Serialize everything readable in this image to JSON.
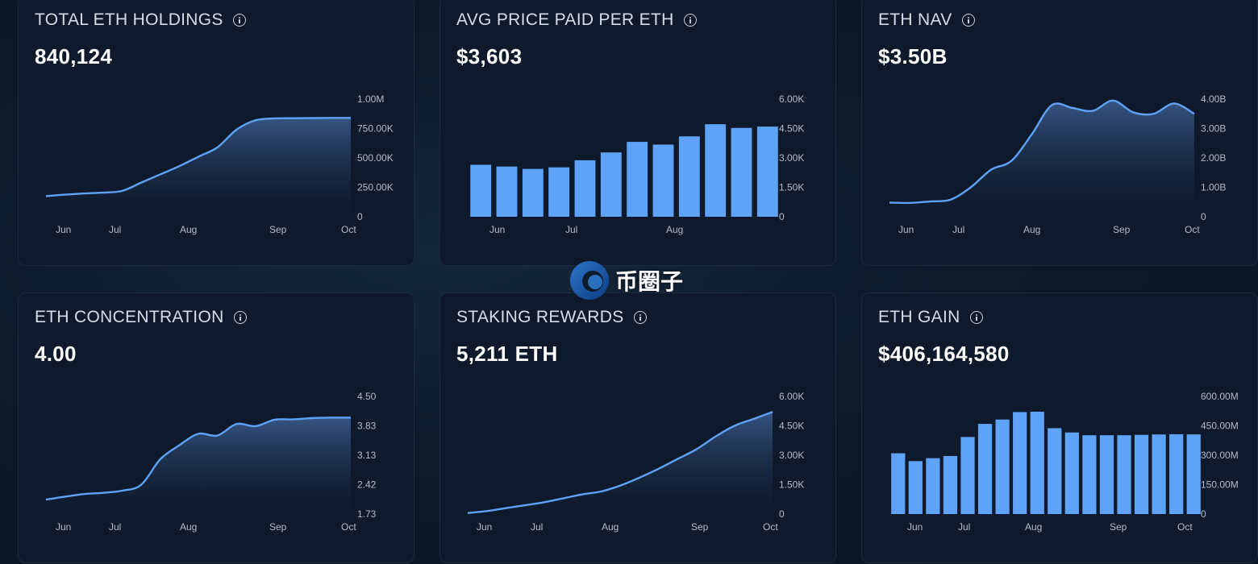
{
  "cards": [
    {
      "title": "TOTAL ETH HOLDINGS",
      "value": "840,124",
      "chart_type": "area",
      "y_ticks": [
        "0",
        "250.00K",
        "500.00K",
        "750.00K",
        "1.00M"
      ],
      "y_max": 1000000,
      "x_labels": [
        "Jun",
        "Jul",
        "Aug",
        "Sep",
        "Oct"
      ],
      "series": [
        175000,
        188000,
        198000,
        205000,
        220000,
        290000,
        360000,
        430000,
        510000,
        590000,
        740000,
        820000,
        836000,
        838000,
        839000,
        840000,
        840124
      ]
    },
    {
      "title": "AVG PRICE PAID PER ETH",
      "value": "$3,603",
      "chart_type": "bar",
      "y_ticks": [
        "0",
        "1.50K",
        "3.00K",
        "4.50K",
        "6.00K"
      ],
      "y_max": 6000,
      "x_labels": [
        "Jun",
        "Jul",
        "Aug"
      ],
      "series": [
        2650,
        2560,
        2440,
        2520,
        2880,
        3280,
        3820,
        3680,
        4100,
        4720,
        4530,
        4600
      ]
    },
    {
      "title": "ETH NAV",
      "value": "$3.50B",
      "chart_type": "area",
      "y_ticks": [
        "0",
        "1.00B",
        "2.00B",
        "3.00B",
        "4.00B"
      ],
      "y_max": 4000000000,
      "x_labels": [
        "Jun",
        "Jul",
        "Aug",
        "Sep",
        "Oct"
      ],
      "series": [
        480000000,
        470000000,
        520000000,
        580000000,
        1000000000,
        1600000000,
        1900000000,
        2800000000,
        3800000000,
        3700000000,
        3600000000,
        3950000000,
        3550000000,
        3500000000,
        3850000000,
        3500000000
      ]
    },
    {
      "title": "ETH CONCENTRATION",
      "value": "4.00",
      "chart_type": "area",
      "y_ticks": [
        "1.73",
        "2.42",
        "3.13",
        "3.83",
        "4.50"
      ],
      "y_min": 1.73,
      "y_max": 4.5,
      "x_labels": [
        "Jun",
        "Jul",
        "Aug",
        "Sep",
        "Oct"
      ],
      "series": [
        2.07,
        2.14,
        2.2,
        2.23,
        2.28,
        2.42,
        3.02,
        3.35,
        3.62,
        3.58,
        3.85,
        3.8,
        3.95,
        3.96,
        3.99,
        4.0,
        4.0
      ]
    },
    {
      "title": "STAKING REWARDS",
      "value": "5,211 ETH",
      "chart_type": "area",
      "y_ticks": [
        "0",
        "1.50K",
        "3.00K",
        "4.50K",
        "6.00K"
      ],
      "y_max": 6000,
      "x_labels": [
        "Jun",
        "Jul",
        "Aug",
        "Sep",
        "Oct"
      ],
      "series": [
        50,
        150,
        300,
        450,
        600,
        800,
        1000,
        1150,
        1450,
        1850,
        2300,
        2800,
        3300,
        3950,
        4500,
        4850,
        5211
      ]
    },
    {
      "title": "ETH GAIN",
      "value": "$406,164,580",
      "chart_type": "bar",
      "y_ticks": [
        "0",
        "150.00M",
        "300.00M",
        "450.00M",
        "600.00M"
      ],
      "y_max": 600000000,
      "x_labels": [
        "Jun",
        "Jul",
        "Aug",
        "Sep",
        "Oct"
      ],
      "series": [
        310000000,
        270000000,
        285000000,
        296000000,
        393000000,
        460000000,
        482000000,
        520000000,
        522000000,
        438000000,
        416000000,
        402000000,
        402000000,
        402000000,
        404000000,
        406000000,
        407000000,
        406164580
      ]
    }
  ],
  "chart_data": [
    {
      "type": "area",
      "title": "TOTAL ETH HOLDINGS",
      "categories": [
        "Jun",
        "Jul",
        "Aug",
        "Sep",
        "Oct"
      ],
      "ylim": [
        0,
        1000000
      ]
    },
    {
      "type": "bar",
      "title": "AVG PRICE PAID PER ETH",
      "categories": [
        "Jun",
        "Jul",
        "Aug"
      ],
      "ylim": [
        0,
        6000
      ]
    },
    {
      "type": "area",
      "title": "ETH NAV",
      "categories": [
        "Jun",
        "Jul",
        "Aug",
        "Sep",
        "Oct"
      ],
      "ylim": [
        0,
        4000000000
      ]
    },
    {
      "type": "area",
      "title": "ETH CONCENTRATION",
      "categories": [
        "Jun",
        "Jul",
        "Aug",
        "Sep",
        "Oct"
      ],
      "ylim": [
        1.73,
        4.5
      ]
    },
    {
      "type": "area",
      "title": "STAKING REWARDS",
      "categories": [
        "Jun",
        "Jul",
        "Aug",
        "Sep",
        "Oct"
      ],
      "ylim": [
        0,
        6000
      ]
    },
    {
      "type": "bar",
      "title": "ETH GAIN",
      "categories": [
        "Jun",
        "Jul",
        "Aug",
        "Sep",
        "Oct"
      ],
      "ylim": [
        0,
        600000000
      ]
    }
  ],
  "watermark": {
    "text": "币圈子"
  },
  "colors": {
    "accent": "#5ea3f7",
    "card_bg": "#0e1a2c",
    "card_border": "#1c2a40"
  }
}
